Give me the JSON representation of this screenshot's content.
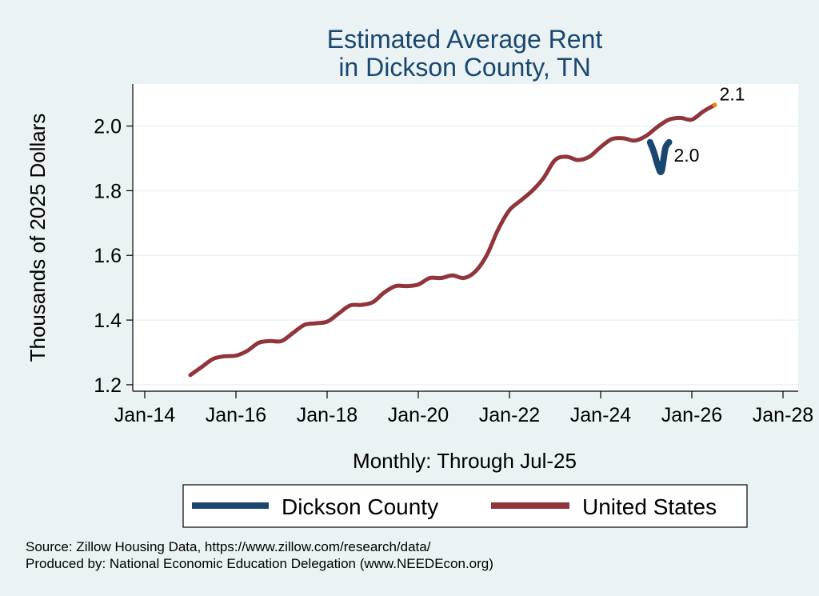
{
  "chart_data": {
    "type": "line",
    "title_lines": [
      "Estimated Average Rent",
      "in Dickson County, TN"
    ],
    "xlabel": "Monthly: Through Jul-25",
    "ylabel": "Thousands of 2025 Dollars",
    "x_ticks": [
      "Jan-14",
      "Jan-16",
      "Jan-18",
      "Jan-20",
      "Jan-22",
      "Jan-24",
      "Jan-26",
      "Jan-28"
    ],
    "xlim": [
      "2014-01",
      "2028-01"
    ],
    "y_ticks": [
      "1.2",
      "1.4",
      "1.6",
      "1.8",
      "2.0"
    ],
    "ylim": [
      1.18,
      2.13
    ],
    "grid": "horizontal",
    "legend_position": "bottom",
    "series": [
      {
        "name": "Dickson County",
        "color": "#1a476f",
        "end_label": "2.0",
        "points": [
          [
            "2025-02",
            1.95
          ],
          [
            "2025-03",
            1.92
          ],
          [
            "2025-04",
            1.88
          ],
          [
            "2025-05",
            1.86
          ],
          [
            "2025-06",
            1.93
          ],
          [
            "2025-07",
            1.95
          ]
        ]
      },
      {
        "name": "United States",
        "color": "#90353b",
        "end_label": "2.1",
        "points": [
          [
            "2015-01",
            1.23
          ],
          [
            "2015-04",
            1.255
          ],
          [
            "2015-07",
            1.28
          ],
          [
            "2015-10",
            1.288
          ],
          [
            "2016-01",
            1.29
          ],
          [
            "2016-04",
            1.305
          ],
          [
            "2016-07",
            1.33
          ],
          [
            "2016-10",
            1.335
          ],
          [
            "2017-01",
            1.335
          ],
          [
            "2017-04",
            1.36
          ],
          [
            "2017-07",
            1.385
          ],
          [
            "2017-10",
            1.39
          ],
          [
            "2018-01",
            1.395
          ],
          [
            "2018-04",
            1.42
          ],
          [
            "2018-07",
            1.445
          ],
          [
            "2018-10",
            1.447
          ],
          [
            "2019-01",
            1.455
          ],
          [
            "2019-04",
            1.485
          ],
          [
            "2019-07",
            1.505
          ],
          [
            "2019-10",
            1.505
          ],
          [
            "2020-01",
            1.51
          ],
          [
            "2020-04",
            1.53
          ],
          [
            "2020-07",
            1.53
          ],
          [
            "2020-10",
            1.538
          ],
          [
            "2021-01",
            1.53
          ],
          [
            "2021-04",
            1.55
          ],
          [
            "2021-07",
            1.6
          ],
          [
            "2021-10",
            1.68
          ],
          [
            "2022-01",
            1.74
          ],
          [
            "2022-04",
            1.77
          ],
          [
            "2022-07",
            1.8
          ],
          [
            "2022-10",
            1.84
          ],
          [
            "2023-01",
            1.895
          ],
          [
            "2023-04",
            1.905
          ],
          [
            "2023-07",
            1.895
          ],
          [
            "2023-10",
            1.905
          ],
          [
            "2024-01",
            1.935
          ],
          [
            "2024-04",
            1.96
          ],
          [
            "2024-07",
            1.962
          ],
          [
            "2024-10",
            1.955
          ],
          [
            "2025-01",
            1.97
          ],
          [
            "2025-04",
            1.998
          ],
          [
            "2025-07",
            2.02
          ],
          [
            "2025-10",
            2.025
          ],
          [
            "2026-01",
            2.02
          ],
          [
            "2026-04",
            2.045
          ],
          [
            "2026-07",
            2.065
          ]
        ]
      }
    ]
  },
  "notes": {
    "source": "Source: Zillow Housing Data, https://www.zillow.com/research/data/",
    "produced_by": "Produced by: National Economic Education Delegation (www.NEEDEcon.org)"
  }
}
